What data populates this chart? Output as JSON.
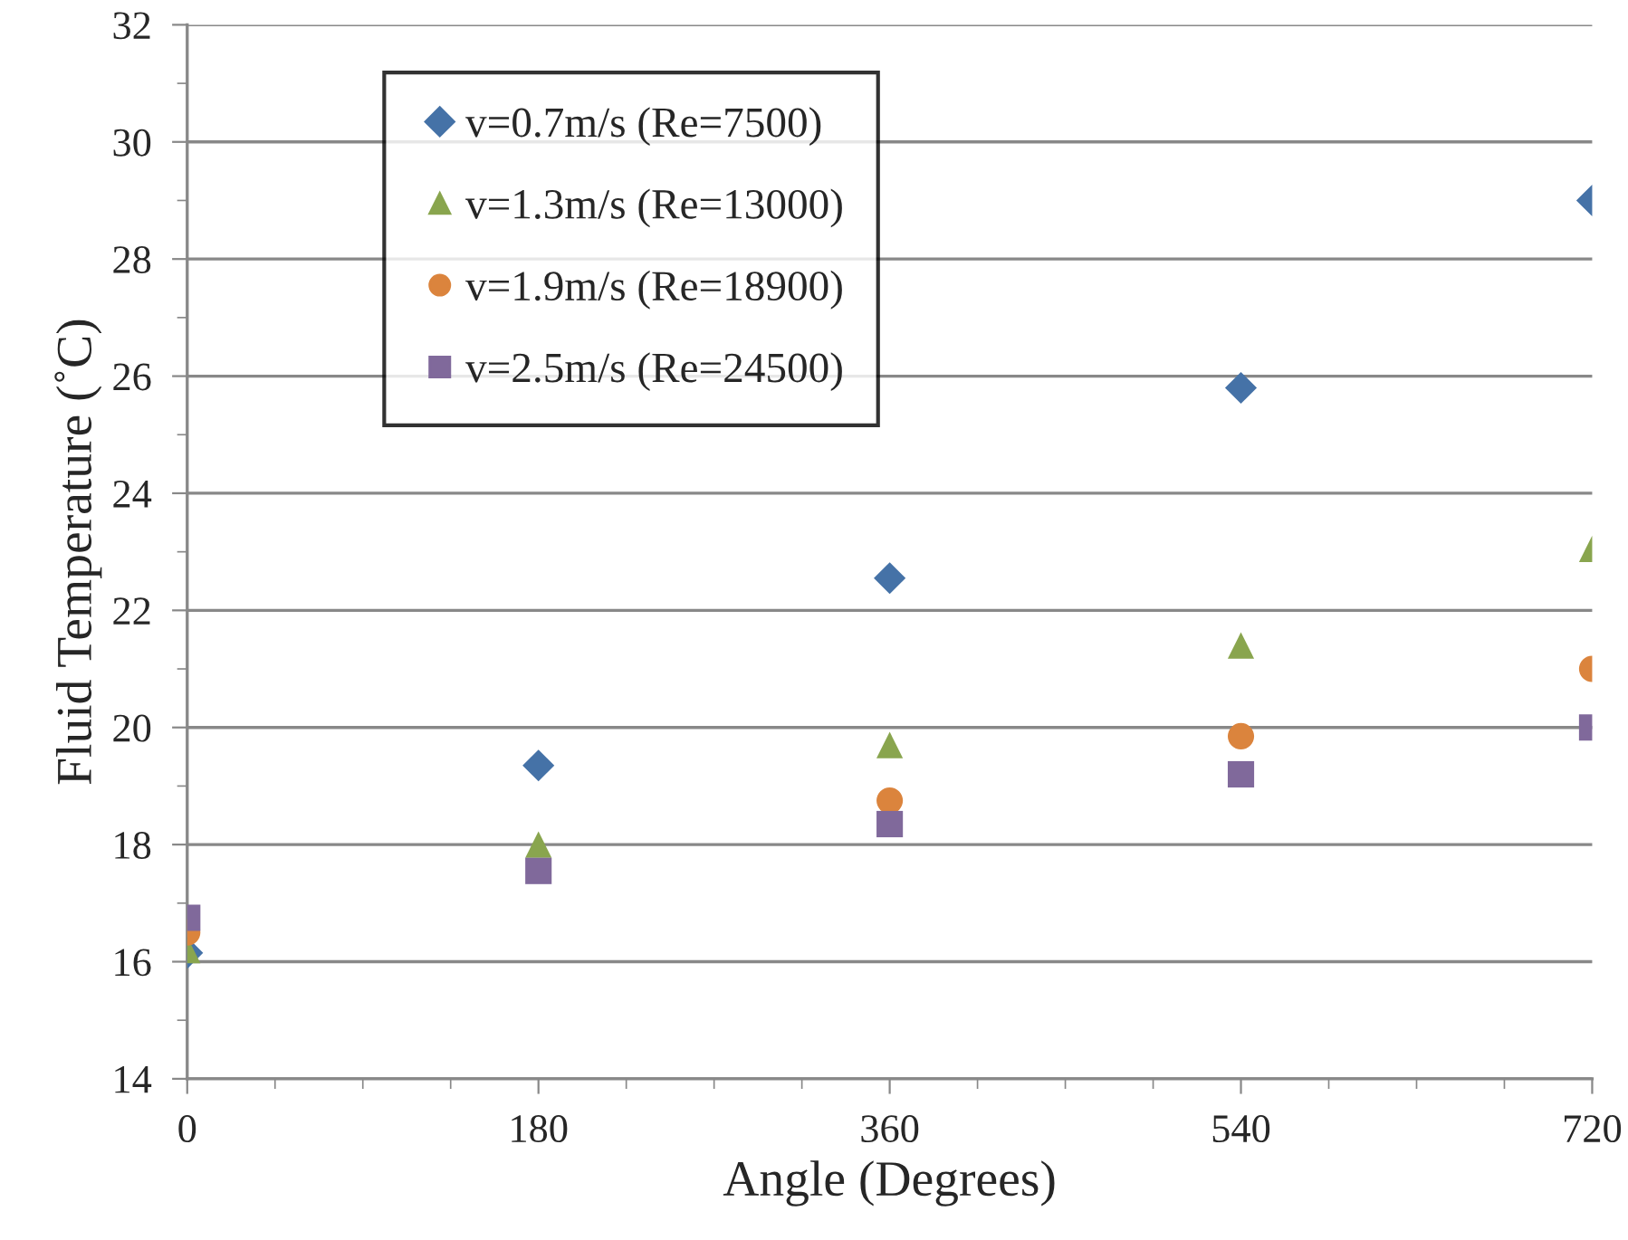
{
  "chart_data": {
    "type": "scatter",
    "xlabel": "Angle (Degrees)",
    "ylabel": "Fluid Temperature (˚C)",
    "x": [
      0,
      180,
      360,
      540,
      720
    ],
    "series": [
      {
        "name": "v=0.7m/s (Re=7500)",
        "color": "#4572a7",
        "marker": "diamond",
        "values": [
          16.15,
          19.35,
          22.55,
          25.8,
          29.0
        ]
      },
      {
        "name": "v=1.3m/s (Re=13000)",
        "color": "#89a54e",
        "marker": "triangle",
        "values": [
          16.2,
          18.0,
          19.7,
          21.4,
          23.05
        ]
      },
      {
        "name": "v=1.9m/s (Re=18900)",
        "color": "#db843d",
        "marker": "circle",
        "values": [
          16.5,
          null,
          18.75,
          19.85,
          21.0
        ]
      },
      {
        "name": "v=2.5m/s (Re=24500)",
        "color": "#80699b",
        "marker": "square",
        "values": [
          16.75,
          17.55,
          18.35,
          19.2,
          20.0
        ]
      }
    ],
    "xlim": [
      0,
      720
    ],
    "xticks": [
      0,
      180,
      360,
      540,
      720
    ],
    "ylim": [
      14,
      32
    ],
    "yticks": [
      14,
      16,
      18,
      20,
      22,
      24,
      26,
      28,
      30,
      32
    ],
    "grid": "y",
    "legend": "top left"
  }
}
